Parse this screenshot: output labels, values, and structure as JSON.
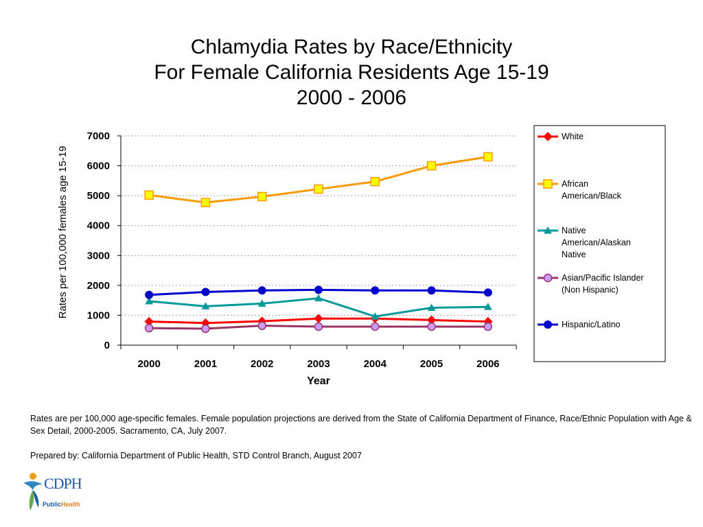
{
  "title": {
    "line1": "Chlamydia Rates by Race/Ethnicity",
    "line2": "For Female California Residents Age 15-19",
    "line3": "2000 - 2006"
  },
  "chart_data": {
    "type": "line",
    "xlabel": "Year",
    "ylabel": "Rates per 100,000 females age 15-19",
    "categories": [
      "2000",
      "2001",
      "2002",
      "2003",
      "2004",
      "2005",
      "2006"
    ],
    "ylim": [
      0,
      7000
    ],
    "yticks": [
      "0",
      "1000",
      "2000",
      "3000",
      "4000",
      "5000",
      "6000",
      "7000"
    ],
    "grid": "horizontal dotted",
    "legend_position": "right",
    "series": [
      {
        "name": "White",
        "color": "#ff0000",
        "marker": "diamond",
        "values": [
          790,
          740,
          800,
          890,
          890,
          840,
          790
        ]
      },
      {
        "name": "African American/Black",
        "color": "#ff9900",
        "marker": "square",
        "values": [
          5020,
          4770,
          4970,
          5220,
          5470,
          6000,
          6300
        ]
      },
      {
        "name": "Native American/Alaskan Native",
        "color": "#009999",
        "marker": "triangle",
        "values": [
          1470,
          1300,
          1390,
          1570,
          960,
          1250,
          1280
        ]
      },
      {
        "name": "Asian/Pacific Islander (Non Hispanic)",
        "color": "#993366",
        "marker": "circle",
        "values": [
          570,
          550,
          650,
          620,
          620,
          620,
          620
        ]
      },
      {
        "name": "Hispanic/Latino",
        "color": "#0000cc",
        "marker": "dot",
        "values": [
          1680,
          1780,
          1830,
          1850,
          1830,
          1830,
          1760
        ]
      }
    ],
    "legend_lines": [
      [
        "White"
      ],
      [
        "African",
        "American/Black"
      ],
      [
        "Native",
        "American/Alaskan",
        "Native"
      ],
      [
        "Asian/Pacific Islander",
        "(Non Hispanic)"
      ],
      [
        "Hispanic/Latino"
      ]
    ]
  },
  "notes": {
    "line1": "Rates are per 100,000 age-specific females.  Female population projections are derived from the State of California Department of Finance, Race/Ethnic Population with Age & Sex Detail, 2000-2005.  Sacramento, CA, July 2007.",
    "line2": "Prepared by:  California Department of Public Health, STD Control Branch, August 2007"
  },
  "logo": {
    "main": "CDPH",
    "sub_prefix": "Public",
    "sub_suffix": "Health"
  }
}
